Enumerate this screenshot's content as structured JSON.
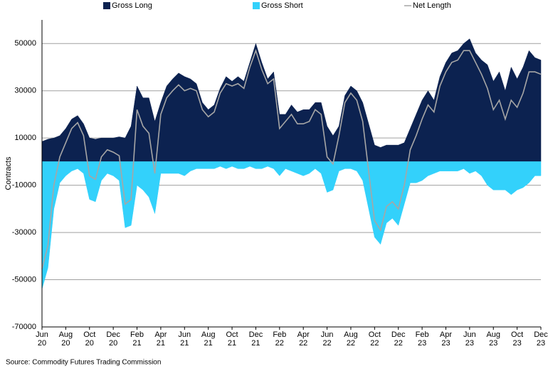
{
  "chart_data": {
    "type": "area",
    "series": [
      {
        "name": "Gross Long",
        "color": "#0c2250",
        "kind": "area",
        "values": [
          8500,
          9500,
          10000,
          11000,
          14000,
          18000,
          19500,
          16000,
          10000,
          9500,
          10000,
          10000,
          10000,
          10500,
          10000,
          15000,
          32000,
          27000,
          27000,
          17000,
          25000,
          32000,
          35000,
          37500,
          36000,
          35000,
          33000,
          25000,
          22000,
          24000,
          31000,
          36000,
          34000,
          36000,
          34000,
          42000,
          50000,
          42000,
          35000,
          38000,
          20000,
          20000,
          24000,
          21000,
          22000,
          22000,
          25000,
          25000,
          15000,
          11000,
          15000,
          28000,
          32000,
          30000,
          25000,
          16000,
          7000,
          6000,
          7000,
          7000,
          7000,
          8000,
          14000,
          20000,
          26000,
          30000,
          26000,
          36000,
          42000,
          46000,
          47000,
          50000,
          52000,
          46000,
          43000,
          41000,
          34000,
          38000,
          30000,
          40000,
          35000,
          40000,
          47000,
          44000,
          43000
        ]
      },
      {
        "name": "Gross Short",
        "color": "#33d1fb",
        "kind": "area",
        "values": [
          -54000,
          -45000,
          -20000,
          -9000,
          -6000,
          -4000,
          -3000,
          -5000,
          -16000,
          -17000,
          -8000,
          -5000,
          -6000,
          -8000,
          -28000,
          -27000,
          -10000,
          -12000,
          -15000,
          -22000,
          -5000,
          -5000,
          -5000,
          -5000,
          -6000,
          -4000,
          -3000,
          -3000,
          -3000,
          -3000,
          -2000,
          -3000,
          -2000,
          -3000,
          -3000,
          -2000,
          -3000,
          -3000,
          -2000,
          -3000,
          -6000,
          -3000,
          -4000,
          -5000,
          -6000,
          -5000,
          -3000,
          -5000,
          -13000,
          -12000,
          -4000,
          -3000,
          -3000,
          -4000,
          -8000,
          -20000,
          -32000,
          -35000,
          -26000,
          -24000,
          -27000,
          -18000,
          -9000,
          -9000,
          -8000,
          -6000,
          -5000,
          -4000,
          -4000,
          -4000,
          -4000,
          -3000,
          -5000,
          -4000,
          -6000,
          -10000,
          -12000,
          -12000,
          -12000,
          -14000,
          -12000,
          -11000,
          -9000,
          -6000,
          -6000
        ]
      },
      {
        "name": "Net Length",
        "color": "#a6a6a6",
        "kind": "line",
        "values": [
          -45500,
          -35500,
          -10000,
          2000,
          8000,
          14000,
          16500,
          11000,
          -6000,
          -7500,
          2000,
          5000,
          4000,
          2500,
          -18000,
          -16000,
          22000,
          15000,
          12000,
          -5000,
          20000,
          27000,
          30000,
          32500,
          30000,
          31000,
          30000,
          22000,
          19000,
          21000,
          29000,
          33000,
          32000,
          33000,
          31000,
          40000,
          47000,
          39000,
          33000,
          35000,
          14000,
          17000,
          20000,
          16000,
          16000,
          17000,
          22000,
          20000,
          2000,
          -1000,
          11000,
          25000,
          29000,
          26000,
          17000,
          -4000,
          -25000,
          -29000,
          -19000,
          -17000,
          -20000,
          -10000,
          5000,
          11000,
          18000,
          24000,
          21000,
          32000,
          38000,
          42000,
          43000,
          47000,
          47000,
          42000,
          37000,
          31000,
          22000,
          26000,
          18000,
          26000,
          23000,
          29000,
          38000,
          38000,
          37000
        ]
      }
    ],
    "x": [
      0,
      0.5,
      1,
      1.5,
      2,
      2.5,
      3,
      3.5,
      4,
      4.5,
      5,
      5.5,
      6,
      6.5,
      7,
      7.5,
      8,
      8.5,
      9,
      9.5,
      10,
      10.5,
      11,
      11.5,
      12,
      12.5,
      13,
      13.5,
      14,
      14.5,
      15,
      15.5,
      16,
      16.5,
      17,
      17.5,
      18,
      18.5,
      19,
      19.5,
      20,
      20.5,
      21,
      21.5,
      22,
      22.5,
      23,
      23.5,
      24,
      24.5,
      25,
      25.5,
      26,
      26.5,
      27,
      27.5,
      28,
      28.5,
      29,
      29.5,
      30,
      30.5,
      31,
      31.5,
      32,
      32.5,
      33,
      33.5,
      34,
      34.5,
      35,
      35.5,
      36,
      36.5,
      37,
      37.5,
      38,
      38.5,
      39,
      39.5,
      40,
      40.5,
      41,
      41.5,
      42
    ],
    "xlim": [
      0,
      42
    ],
    "xticks": [
      {
        "value": 0,
        "label": "Jun 20"
      },
      {
        "value": 2,
        "label": "Aug 20"
      },
      {
        "value": 4,
        "label": "Oct 20"
      },
      {
        "value": 6,
        "label": "Dec 20"
      },
      {
        "value": 8,
        "label": "Feb 21"
      },
      {
        "value": 10,
        "label": "Apr 21"
      },
      {
        "value": 12,
        "label": "Jun 21"
      },
      {
        "value": 14,
        "label": "Aug 21"
      },
      {
        "value": 16,
        "label": "Oct 21"
      },
      {
        "value": 18,
        "label": "Dec 21"
      },
      {
        "value": 20,
        "label": "Feb 22"
      },
      {
        "value": 22,
        "label": "Apr 22"
      },
      {
        "value": 24,
        "label": "Jun 22"
      },
      {
        "value": 26,
        "label": "Aug 22"
      },
      {
        "value": 28,
        "label": "Oct 22"
      },
      {
        "value": 30,
        "label": "Dec 22"
      },
      {
        "value": 32,
        "label": "Feb 23"
      },
      {
        "value": 34,
        "label": "Apr 23"
      },
      {
        "value": 36,
        "label": "Jun 23"
      },
      {
        "value": 38,
        "label": "Aug 23"
      },
      {
        "value": 40,
        "label": "Oct 23"
      },
      {
        "value": 42,
        "label": "Dec 23"
      }
    ],
    "ylim": [
      -70000,
      60000
    ],
    "yticks": [
      -70000,
      -50000,
      -30000,
      -10000,
      10000,
      30000,
      50000
    ],
    "ylabel": "Contracts",
    "source": "Source: Commodity Futures Trading Commission",
    "grid": true
  }
}
